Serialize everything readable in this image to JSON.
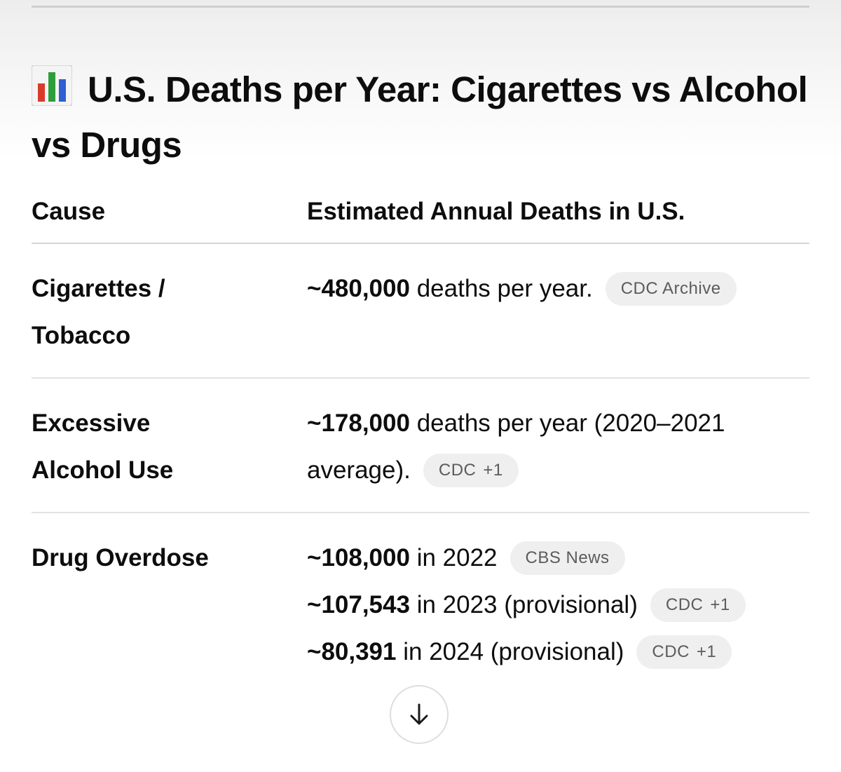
{
  "heading": {
    "icon": "bar-chart-emoji-icon",
    "title": "U.S. Deaths per Year: Cigarettes vs Alcohol vs Drugs"
  },
  "table": {
    "headers": [
      "Cause",
      "Estimated Annual Deaths in U.S."
    ],
    "rows": [
      {
        "cause": "Cigarettes / Tobacco",
        "lines": [
          {
            "value": "~480,000",
            "text": " deaths per year.",
            "source": "CDC Archive",
            "extra": ""
          }
        ]
      },
      {
        "cause": "Excessive Alcohol Use",
        "lines": [
          {
            "value": "~178,000",
            "text": " deaths per year (2020–2021 average).",
            "source": "CDC",
            "extra": "+1"
          }
        ]
      },
      {
        "cause": "Drug Overdose",
        "lines": [
          {
            "value": "~108,000",
            "text": " in 2022",
            "source": "CBS News",
            "extra": ""
          },
          {
            "value": "~107,543",
            "text": " in 2023 (provisional)",
            "source": "CDC",
            "extra": "+1"
          },
          {
            "value": "~80,391",
            "text": " in 2024 (provisional)",
            "source": "CDC",
            "extra": "+1"
          }
        ]
      }
    ]
  },
  "scroll_down": {
    "icon": "arrow-down-icon"
  },
  "colors": {
    "text": "#0d0d0d",
    "pill_bg": "#efefef",
    "pill_text": "#5c5c5c",
    "divider": "#e3e3e3",
    "icon_red": "#d93b2b",
    "icon_green": "#2e9e3a",
    "icon_blue": "#2f5fd0"
  }
}
